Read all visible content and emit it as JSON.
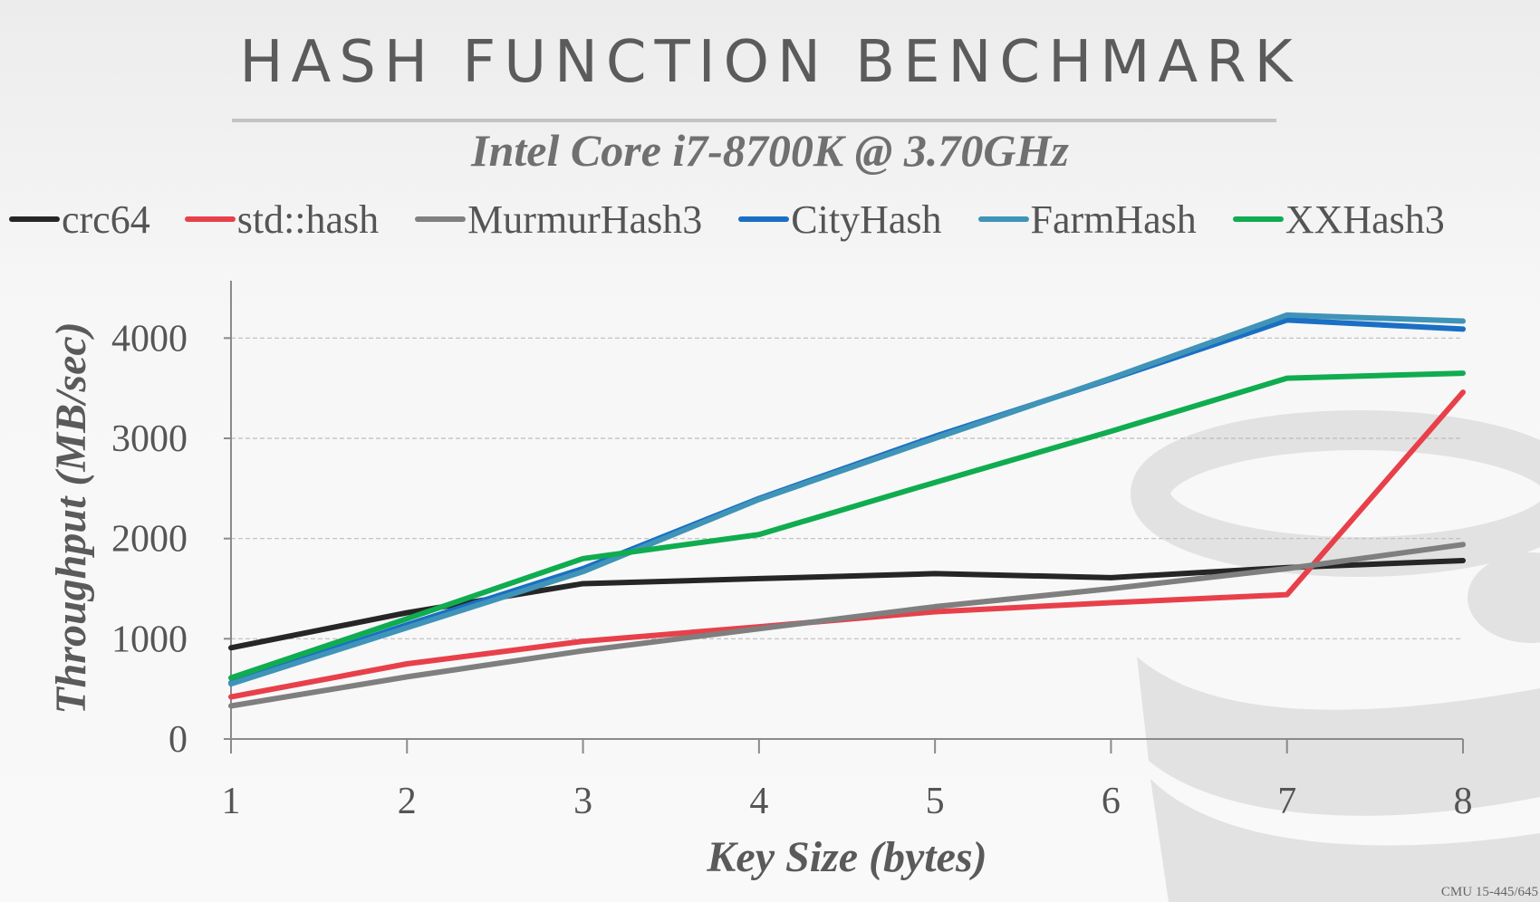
{
  "title": "HASH FUNCTION BENCHMARK",
  "subtitle": "Intel Core i7-8700K @ 3.70GHz",
  "footer": "CMU 15-445/645",
  "chart_data": {
    "type": "line",
    "x": [
      1,
      2,
      3,
      4,
      5,
      6,
      7,
      8
    ],
    "xlabel": "Key Size (bytes)",
    "ylabel": "Throughput (MB/sec)",
    "ylim": [
      0,
      4500
    ],
    "yticks": [
      0,
      1000,
      2000,
      3000,
      4000
    ],
    "grid": "horizontal dashed",
    "legend_position": "top",
    "series": [
      {
        "name": "crc64",
        "color": "#262626",
        "values": [
          910,
          1260,
          1550,
          1600,
          1650,
          1610,
          1710,
          1780
        ]
      },
      {
        "name": "std::hash",
        "color": "#e8404a",
        "values": [
          420,
          750,
          975,
          1120,
          1270,
          1360,
          1440,
          3460
        ]
      },
      {
        "name": "MurmurHash3",
        "color": "#7f7f7f",
        "values": [
          330,
          620,
          880,
          1100,
          1320,
          1500,
          1700,
          1940
        ]
      },
      {
        "name": "CityHash",
        "color": "#1a6fc4",
        "values": [
          560,
          1140,
          1700,
          2400,
          3020,
          3590,
          4180,
          4090
        ]
      },
      {
        "name": "FarmHash",
        "color": "#3f94b8",
        "values": [
          550,
          1110,
          1670,
          2390,
          3000,
          3600,
          4230,
          4170
        ]
      },
      {
        "name": "XXHash3",
        "color": "#10ac50",
        "values": [
          610,
          1200,
          1800,
          2040,
          2560,
          3070,
          3600,
          3650
        ]
      }
    ]
  }
}
